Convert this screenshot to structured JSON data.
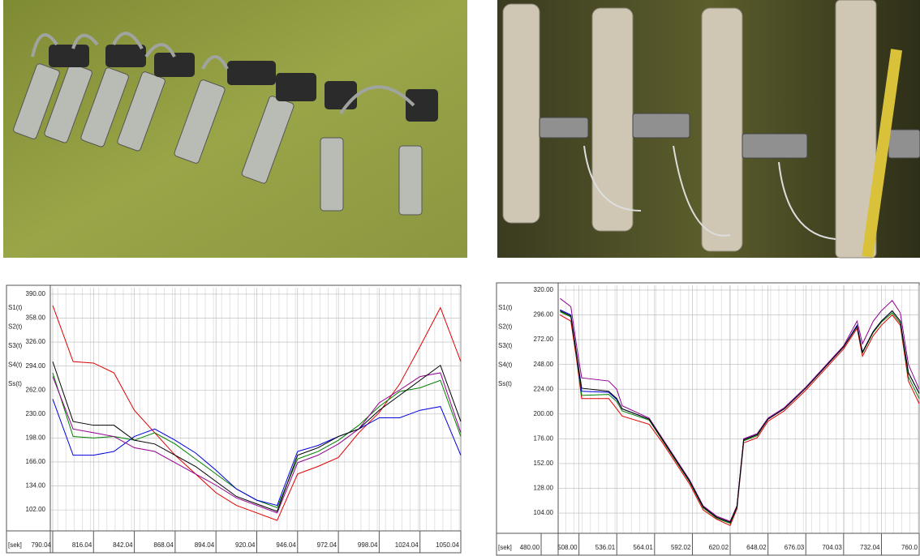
{
  "chart_data": [
    {
      "type": "line",
      "x_label": "[sek]",
      "x": [
        790.04,
        803.04,
        816.04,
        829.04,
        842.04,
        855.04,
        868.04,
        881.04,
        894.04,
        907.04,
        920.04,
        933.04,
        946.04,
        959.04,
        972.04,
        985.04,
        998.04,
        1011.04,
        1024.04,
        1037.04,
        1050.04
      ],
      "series": [
        {
          "name": "S1(t)",
          "color": "#e00000",
          "values": [
            375,
            300,
            298,
            285,
            235,
            205,
            175,
            150,
            125,
            108,
            98,
            88,
            150,
            160,
            172,
            205,
            232,
            270,
            320,
            372,
            300
          ]
        },
        {
          "name": "S2(t)",
          "color": "#008000",
          "values": [
            285,
            200,
            198,
            200,
            195,
            205,
            190,
            170,
            150,
            130,
            115,
            105,
            170,
            180,
            195,
            215,
            240,
            260,
            265,
            275,
            200
          ]
        },
        {
          "name": "S3(t)",
          "color": "#0000e0",
          "values": [
            250,
            175,
            175,
            180,
            200,
            210,
            195,
            178,
            155,
            130,
            115,
            108,
            180,
            188,
            200,
            210,
            225,
            225,
            235,
            240,
            175
          ]
        },
        {
          "name": "S4(t)",
          "color": "#900090",
          "values": [
            280,
            210,
            205,
            200,
            185,
            180,
            165,
            150,
            135,
            118,
            108,
            98,
            165,
            175,
            190,
            210,
            245,
            262,
            280,
            285,
            205
          ]
        },
        {
          "name": "Ss(t)",
          "color": "#000000",
          "values": [
            300,
            220,
            215,
            215,
            195,
            190,
            175,
            160,
            140,
            120,
            110,
            100,
            175,
            185,
            200,
            210,
            235,
            255,
            275,
            295,
            220
          ]
        }
      ],
      "xlim": [
        788.5,
        1050.04
      ],
      "xticks": [
        {
          "value": 790.04,
          "label": "790.04"
        },
        {
          "value": 816.04,
          "label": "816.04"
        },
        {
          "value": 842.04,
          "label": "842.04"
        },
        {
          "value": 868.04,
          "label": "868.04"
        },
        {
          "value": 894.04,
          "label": "894.04"
        },
        {
          "value": 920.04,
          "label": "920.04"
        },
        {
          "value": 946.04,
          "label": "946.04"
        },
        {
          "value": 972.04,
          "label": "972.04"
        },
        {
          "value": 998.04,
          "label": "998.04"
        },
        {
          "value": 1024.04,
          "label": "1024.04"
        },
        {
          "value": 1050.04,
          "label": "1050.04"
        }
      ],
      "ylim": [
        74,
        398.6
      ],
      "yticks": [
        {
          "value": 102,
          "label": "102.00"
        },
        {
          "value": 134,
          "label": "134.00"
        },
        {
          "value": 166,
          "label": "166.00"
        },
        {
          "value": 198,
          "label": "198.00"
        },
        {
          "value": 230,
          "label": "230.00"
        },
        {
          "value": 262,
          "label": "262.00"
        },
        {
          "value": 294,
          "label": "294.00"
        },
        {
          "value": 326,
          "label": "326.00"
        },
        {
          "value": 358,
          "label": "358.00"
        },
        {
          "value": 390,
          "label": "390.00"
        }
      ],
      "grid": true
    },
    {
      "type": "line",
      "x_label": "[sek]",
      "x": [
        494,
        502,
        506,
        510,
        530,
        536,
        540,
        560,
        570,
        590,
        600,
        610,
        620,
        625,
        630,
        640,
        648,
        660,
        676,
        690,
        704,
        714,
        718,
        726,
        732,
        740,
        746,
        752,
        760
      ],
      "series": [
        {
          "name": "S1(t)",
          "color": "#e00000",
          "values": [
            296,
            290,
            255,
            215,
            215,
            205,
            198,
            190,
            172,
            132,
            107,
            98,
            92,
            108,
            172,
            177,
            193,
            203,
            223,
            243,
            263,
            283,
            256,
            276,
            286,
            296,
            286,
            232,
            210
          ]
        },
        {
          "name": "S2(t)",
          "color": "#008000",
          "values": [
            299,
            294,
            258,
            218,
            219,
            212,
            203,
            194,
            174,
            134,
            109,
            99,
            94,
            109,
            174,
            179,
            195,
            205,
            225,
            245,
            265,
            285,
            259,
            279,
            289,
            298,
            288,
            236,
            215
          ]
        },
        {
          "name": "S3(t)",
          "color": "#0000e0",
          "values": [
            301,
            296,
            260,
            222,
            221,
            214,
            205,
            195,
            175,
            135,
            110,
            100,
            95,
            110,
            175,
            180,
            195,
            205,
            225,
            245,
            265,
            286,
            260,
            280,
            290,
            300,
            290,
            240,
            220
          ]
        },
        {
          "name": "S4(t)",
          "color": "#900090",
          "values": [
            312,
            304,
            268,
            235,
            232,
            224,
            208,
            196,
            176,
            136,
            111,
            101,
            96,
            111,
            176,
            181,
            196,
            206,
            226,
            246,
            266,
            290,
            268,
            290,
            300,
            310,
            298,
            248,
            224
          ]
        },
        {
          "name": "Ss(t)",
          "color": "#000000",
          "values": [
            300,
            295,
            260,
            225,
            222,
            215,
            205,
            195,
            175,
            135,
            110,
            100,
            95,
            110,
            175,
            180,
            195,
            205,
            225,
            245,
            265,
            285,
            260,
            280,
            290,
            300,
            290,
            240,
            220
          ]
        }
      ],
      "xlim": [
        492.6,
        760
      ],
      "xticks": [
        {
          "value": 480,
          "label": "480.00"
        },
        {
          "value": 508,
          "label": "508.00"
        },
        {
          "value": 536.01,
          "label": "536.01"
        },
        {
          "value": 564.01,
          "label": "564.01"
        },
        {
          "value": 592.02,
          "label": "592.02"
        },
        {
          "value": 620.02,
          "label": "620.02"
        },
        {
          "value": 648.02,
          "label": "648.02"
        },
        {
          "value": 676.03,
          "label": "676.03"
        },
        {
          "value": 704.03,
          "label": "704.03"
        },
        {
          "value": 732.04,
          "label": "732.04"
        },
        {
          "value": 760,
          "label": "760.0"
        }
      ],
      "ylim": [
        84.4,
        324.7
      ],
      "yticks": [
        {
          "value": 104,
          "label": "104.00"
        },
        {
          "value": 128,
          "label": "128.00"
        },
        {
          "value": 152,
          "label": "152.00"
        },
        {
          "value": 176,
          "label": "176.00"
        },
        {
          "value": 200,
          "label": "200.00"
        },
        {
          "value": 224,
          "label": "224.00"
        },
        {
          "value": 248,
          "label": "248.00"
        },
        {
          "value": 272,
          "label": "272.00"
        },
        {
          "value": 296,
          "label": "296.00"
        },
        {
          "value": 320,
          "label": "320.00"
        }
      ],
      "grid": true
    }
  ]
}
